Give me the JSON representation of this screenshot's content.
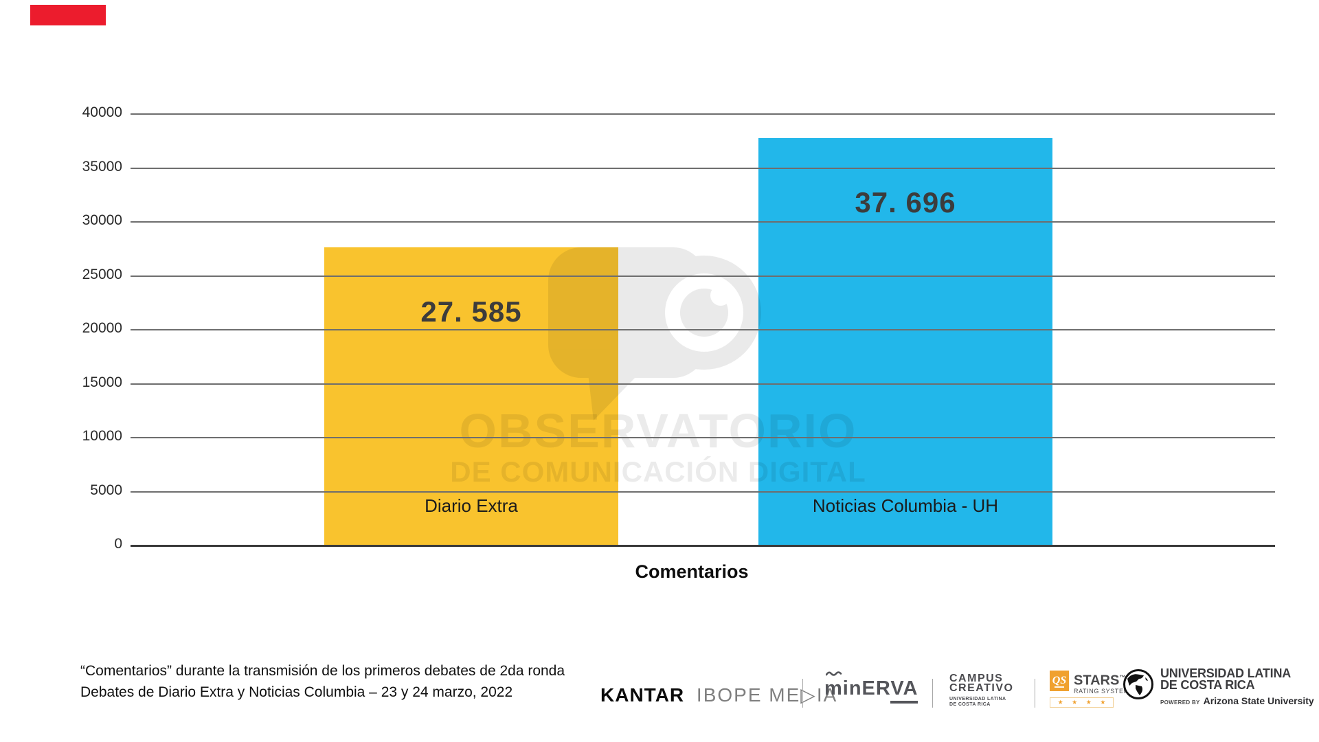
{
  "chart_data": {
    "type": "bar",
    "title": "",
    "categories": [
      "Diario Extra",
      "Noticias Columbia - UH"
    ],
    "values": [
      27585,
      37696
    ],
    "value_labels": [
      "27. 585",
      "37. 696"
    ],
    "bar_colors": [
      "#F9C32E",
      "#22B7EA"
    ],
    "xlabel": "Comentarios",
    "ylabel": "",
    "ylim": [
      0,
      40000
    ],
    "ytick_interval": 5000,
    "yticks": [
      "40000",
      "35000",
      "30000",
      "25000",
      "20000",
      "15000",
      "10000",
      "5000",
      "0"
    ],
    "grid": true,
    "legend": false,
    "value_label_color": "#3c3c3c",
    "category_label_color": "#1b1b1b"
  },
  "annotation": {
    "red_marker_color": "#ec1c2d"
  },
  "watermark": {
    "title": "OBSERVATORIO",
    "subtitle": "DE COMUNICACIÓN DIGITAL",
    "logo": "eye-speech-bubble"
  },
  "caption": {
    "line1": "“Comentarios” durante la transmisión de los primeros debates de 2da ronda",
    "line2": "Debates de Diario Extra y Noticias Columbia – 23 y 24 marzo, 2022"
  },
  "footer": {
    "kantar": {
      "primary": "KANTAR",
      "secondary": "IBOPE ME▷IA"
    },
    "minerva": {
      "pre": "minER",
      "underlined": "VA"
    },
    "campus": {
      "line1": "CAMPUS",
      "line2": "CREATIVO",
      "sub1": "UNIVERSIDAD LATINA",
      "sub2": "DE COSTA RICA"
    },
    "qs": {
      "badge": "QS",
      "title": "STARS",
      "tm": "™",
      "subtitle": "RATING SYSTEM",
      "stars": "★ ★ ★ ★",
      "accent": "#F0A12F"
    },
    "ulatina": {
      "line1": "UNIVERSIDAD LATINA",
      "line2": "DE COSTA RICA",
      "powered_prefix": "POWERED BY",
      "powered_name": "Arizona State University"
    }
  }
}
